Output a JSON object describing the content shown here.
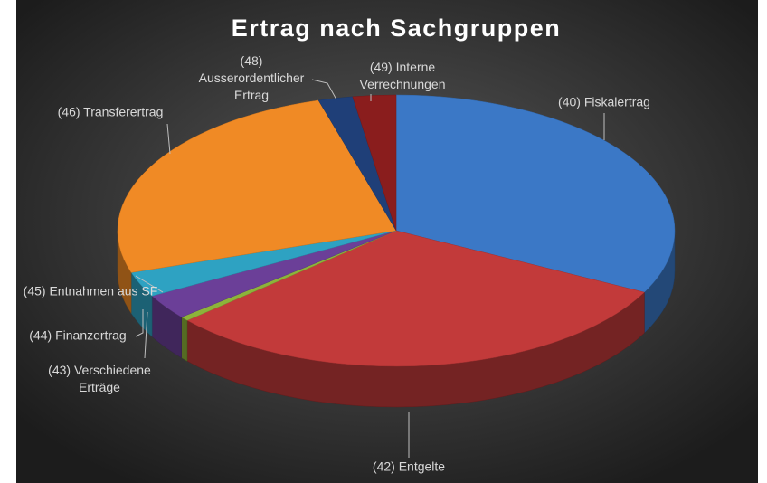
{
  "chart_data": {
    "type": "pie",
    "title": "Ertrag nach Sachgruppen",
    "categories": [
      "(40) Fiskalertrag",
      "(42) Entgelte",
      "(43) Verschiedene Erträge",
      "(44) Finanzertrag",
      "(45) Entnahmen aus SF",
      "(46) Transferertrag",
      "(48) Ausserordentlicher Ertrag",
      "(49) Interne Verrechnungen"
    ],
    "values": [
      32.5,
      31,
      0.5,
      3,
      3,
      25.5,
      2,
      2.5
    ],
    "colors": [
      "#3b78c6",
      "#c23a3a",
      "#8db33a",
      "#6b3f98",
      "#2ea2c2",
      "#f08a25",
      "#1f3f78",
      "#8a1d1d"
    ]
  }
}
